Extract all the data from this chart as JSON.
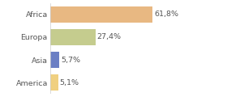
{
  "categories": [
    "Africa",
    "Europa",
    "Asia",
    "America"
  ],
  "values": [
    61.8,
    27.4,
    5.7,
    5.1
  ],
  "labels": [
    "61,8%",
    "27,4%",
    "5,7%",
    "5,1%"
  ],
  "bar_colors": [
    "#e8b882",
    "#c5cc8e",
    "#6b7fc4",
    "#f0d080"
  ],
  "xlim": [
    0,
    90
  ],
  "background_color": "#ffffff",
  "text_color": "#555555",
  "bar_height": 0.72,
  "label_fontsize": 6.8,
  "tick_fontsize": 6.8
}
